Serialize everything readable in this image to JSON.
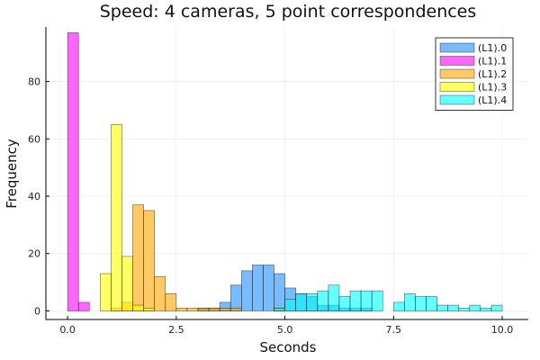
{
  "chart_data": {
    "type": "bar",
    "title": "Speed: 4 cameras, 5 point correspondences",
    "xlabel": "Seconds",
    "ylabel": "Frequency",
    "xlim": [
      -0.5,
      10.6
    ],
    "ylim": [
      -3,
      99
    ],
    "x_ticks": [
      {
        "value": 0,
        "label": "0.0"
      },
      {
        "value": 2.5,
        "label": "2.5"
      },
      {
        "value": 5,
        "label": "5.0"
      },
      {
        "value": 7.5,
        "label": "7.5"
      },
      {
        "value": 10,
        "label": "10.0"
      }
    ],
    "y_ticks": [
      {
        "value": 0,
        "label": "0"
      },
      {
        "value": 20,
        "label": "20"
      },
      {
        "value": 40,
        "label": "40"
      },
      {
        "value": 60,
        "label": "60"
      },
      {
        "value": 80,
        "label": "80"
      }
    ],
    "grid": true,
    "legend_position": "top-right",
    "bin_width": 0.25,
    "series": [
      {
        "name": "(L1).0",
        "color": "#1e90ff",
        "bins": [
          [
            3.0,
            1
          ],
          [
            3.25,
            1
          ],
          [
            3.5,
            3
          ],
          [
            3.75,
            9
          ],
          [
            4.0,
            14
          ],
          [
            4.25,
            16
          ],
          [
            4.5,
            16
          ],
          [
            4.75,
            13
          ],
          [
            5.0,
            8
          ],
          [
            5.25,
            6
          ],
          [
            5.5,
            5
          ],
          [
            5.75,
            2
          ],
          [
            6.0,
            2
          ],
          [
            6.25,
            1
          ],
          [
            6.5,
            1
          ],
          [
            6.75,
            1
          ]
        ]
      },
      {
        "name": "(L1).1",
        "color": "#ff00ff",
        "bins": [
          [
            0.0,
            97
          ],
          [
            0.25,
            3
          ]
        ]
      },
      {
        "name": "(L1).2",
        "color": "#ffa500",
        "bins": [
          [
            1.0,
            1
          ],
          [
            1.25,
            3
          ],
          [
            1.5,
            37
          ],
          [
            1.75,
            35
          ],
          [
            2.0,
            12
          ],
          [
            2.25,
            6
          ],
          [
            2.5,
            1
          ],
          [
            2.75,
            1
          ],
          [
            3.0,
            1
          ],
          [
            3.25,
            1
          ],
          [
            3.5,
            1
          ],
          [
            3.75,
            1
          ],
          [
            4.75,
            1
          ]
        ]
      },
      {
        "name": "(L1).3",
        "color": "#ffff00",
        "bins": [
          [
            0.75,
            13
          ],
          [
            1.0,
            65
          ],
          [
            1.25,
            19
          ],
          [
            1.5,
            2
          ],
          [
            1.75,
            1
          ]
        ]
      },
      {
        "name": "(L1).4",
        "color": "#00ffff",
        "bins": [
          [
            4.75,
            1
          ],
          [
            5.0,
            4
          ],
          [
            5.25,
            6
          ],
          [
            5.5,
            6
          ],
          [
            5.75,
            7
          ],
          [
            6.0,
            9
          ],
          [
            6.25,
            5
          ],
          [
            6.5,
            7
          ],
          [
            6.75,
            7
          ],
          [
            7.0,
            7
          ],
          [
            7.5,
            3
          ],
          [
            7.75,
            6
          ],
          [
            8.0,
            5
          ],
          [
            8.25,
            5
          ],
          [
            8.5,
            2
          ],
          [
            8.75,
            2
          ],
          [
            9.0,
            1
          ],
          [
            9.25,
            2
          ],
          [
            9.5,
            1
          ],
          [
            9.75,
            2
          ]
        ]
      }
    ]
  }
}
